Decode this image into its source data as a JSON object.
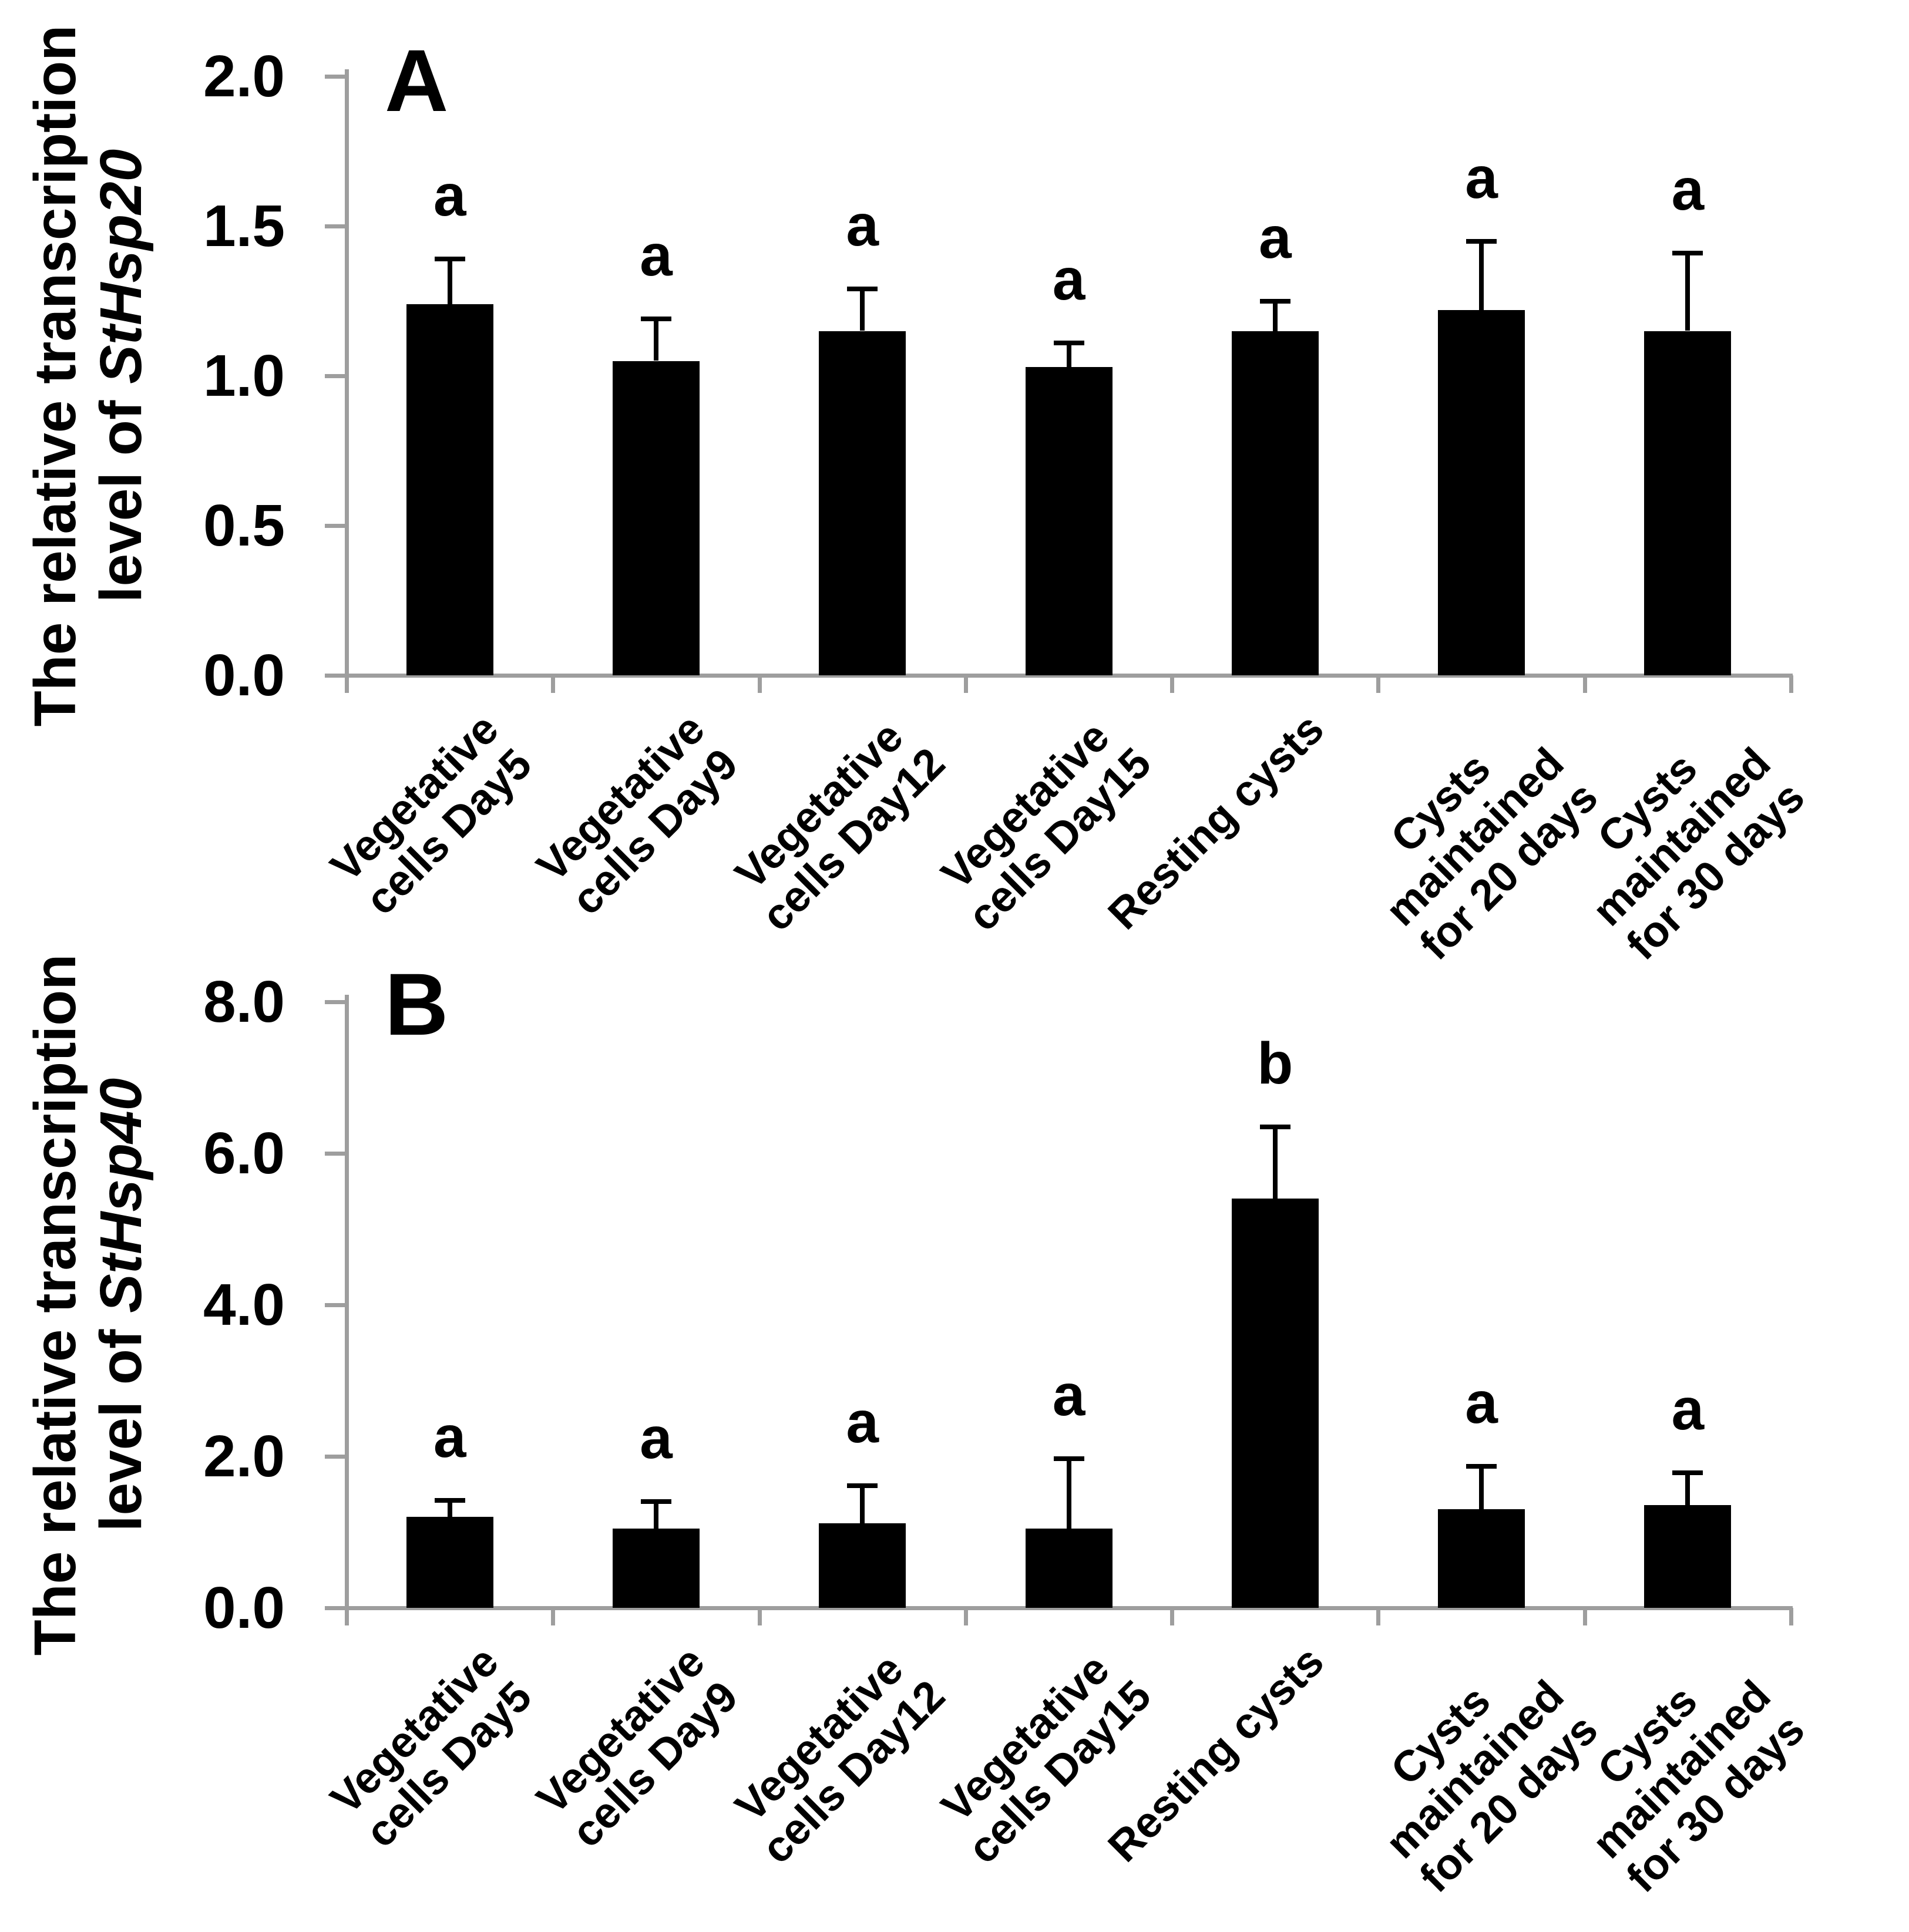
{
  "figure": {
    "background": "#ffffff",
    "colors": {
      "bar": "#000000",
      "axis": "#9e9e9e",
      "text": "#000000"
    }
  },
  "category_lines": [
    [
      "Vegetative",
      "cells Day5"
    ],
    [
      "Vegetative",
      "cells Day9"
    ],
    [
      "Vegetative",
      "cells Day12"
    ],
    [
      "Vegetative",
      "cells Day15"
    ],
    [
      "Resting cysts"
    ],
    [
      "Cysts",
      "maintained",
      "for 20 days"
    ],
    [
      "Cysts",
      "maintained",
      "for 30 days"
    ]
  ],
  "chart_data": [
    {
      "panel_letter": "A",
      "type": "bar",
      "ylabel_line1": "The relative transcription",
      "ylabel_line2_prefix": "level of ",
      "ylabel_gene": "StHsp20",
      "ylim": [
        0.0,
        2.0
      ],
      "ytick_labels": [
        "2.0",
        "1.5",
        "1.0",
        "0.5",
        "0.0"
      ],
      "grid": false,
      "legend": "none",
      "categories": [
        "Vegetative cells Day5",
        "Vegetative cells Day9",
        "Vegetative cells Day12",
        "Vegetative cells Day15",
        "Resting cysts",
        "Cysts maintained for 20 days",
        "Cysts maintained for 30 days"
      ],
      "values": [
        1.24,
        1.05,
        1.15,
        1.03,
        1.15,
        1.22,
        1.15
      ],
      "errors_plus": [
        0.15,
        0.14,
        0.14,
        0.08,
        0.1,
        0.23,
        0.26
      ],
      "sig_letters": [
        "a",
        "a",
        "a",
        "a",
        "a",
        "a",
        "a"
      ]
    },
    {
      "panel_letter": "B",
      "type": "bar",
      "ylabel_line1": "The relative transcription",
      "ylabel_line2_prefix": "level of ",
      "ylabel_gene": "StHsp40",
      "ylim": [
        0.0,
        8.0
      ],
      "ytick_labels": [
        "8.0",
        "6.0",
        "4.0",
        "2.0",
        "0.0"
      ],
      "grid": false,
      "legend": "none",
      "categories": [
        "Vegetative cells Day5",
        "Vegetative cells Day9",
        "Vegetative cells Day12",
        "Vegetative cells Day15",
        "Resting cysts",
        "Cysts maintained for 20 days",
        "Cysts maintained for 30 days"
      ],
      "values": [
        1.2,
        1.05,
        1.12,
        1.05,
        5.4,
        1.3,
        1.36
      ],
      "errors_plus": [
        0.22,
        0.35,
        0.49,
        0.92,
        0.95,
        0.57,
        0.42
      ],
      "sig_letters": [
        "a",
        "a",
        "a",
        "a",
        "b",
        "a",
        "a"
      ]
    }
  ]
}
